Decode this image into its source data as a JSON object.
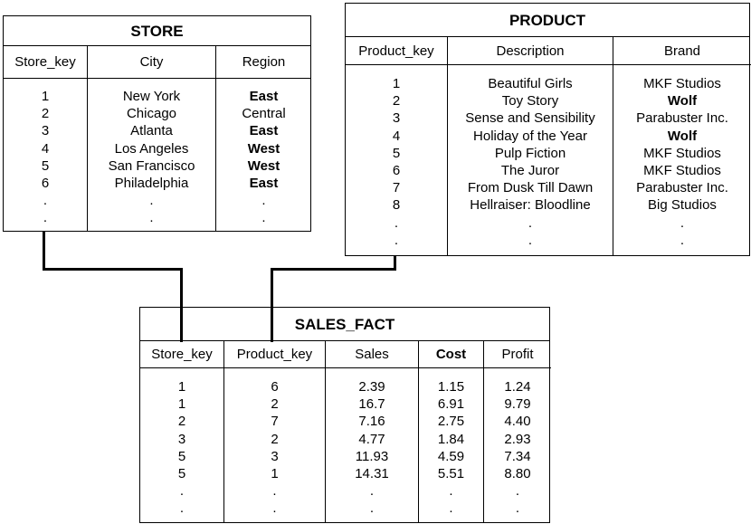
{
  "tables": {
    "store": {
      "title": "STORE",
      "columns": [
        {
          "header": "Store_key",
          "bold_header": false,
          "cells": [
            {
              "t": "1"
            },
            {
              "t": "2"
            },
            {
              "t": "3"
            },
            {
              "t": "4"
            },
            {
              "t": "5"
            },
            {
              "t": "6"
            },
            {
              "t": "."
            },
            {
              "t": "."
            }
          ]
        },
        {
          "header": "City",
          "bold_header": false,
          "cells": [
            {
              "t": "New York"
            },
            {
              "t": "Chicago"
            },
            {
              "t": "Atlanta"
            },
            {
              "t": "Los Angeles"
            },
            {
              "t": "San Francisco"
            },
            {
              "t": "Philadelphia"
            },
            {
              "t": "."
            },
            {
              "t": "."
            }
          ]
        },
        {
          "header": "Region",
          "bold_header": false,
          "cells": [
            {
              "t": "East",
              "b": true
            },
            {
              "t": "Central"
            },
            {
              "t": "East",
              "b": true
            },
            {
              "t": "West",
              "b": true
            },
            {
              "t": "West",
              "b": true
            },
            {
              "t": "East",
              "b": true
            },
            {
              "t": "."
            },
            {
              "t": "."
            }
          ]
        }
      ]
    },
    "product": {
      "title": "PRODUCT",
      "columns": [
        {
          "header": "Product_key",
          "bold_header": false,
          "cells": [
            {
              "t": "1"
            },
            {
              "t": "2"
            },
            {
              "t": "3"
            },
            {
              "t": "4"
            },
            {
              "t": "5"
            },
            {
              "t": "6"
            },
            {
              "t": "7"
            },
            {
              "t": "8"
            },
            {
              "t": "."
            },
            {
              "t": "."
            }
          ]
        },
        {
          "header": "Description",
          "bold_header": false,
          "cells": [
            {
              "t": "Beautiful Girls"
            },
            {
              "t": "Toy Story"
            },
            {
              "t": "Sense and Sensibility"
            },
            {
              "t": "Holiday of the Year"
            },
            {
              "t": "Pulp Fiction"
            },
            {
              "t": "The Juror"
            },
            {
              "t": "From Dusk Till Dawn"
            },
            {
              "t": "Hellraiser: Bloodline"
            },
            {
              "t": "."
            },
            {
              "t": "."
            }
          ]
        },
        {
          "header": "Brand",
          "bold_header": false,
          "cells": [
            {
              "t": "MKF Studios"
            },
            {
              "t": "Wolf",
              "b": true
            },
            {
              "t": "Parabuster Inc."
            },
            {
              "t": "Wolf",
              "b": true
            },
            {
              "t": "MKF Studios"
            },
            {
              "t": "MKF Studios"
            },
            {
              "t": "Parabuster Inc."
            },
            {
              "t": "Big Studios"
            },
            {
              "t": "."
            },
            {
              "t": "."
            }
          ]
        }
      ]
    },
    "sales_fact": {
      "title": "SALES_FACT",
      "columns": [
        {
          "header": "Store_key",
          "bold_header": false,
          "cells": [
            {
              "t": "1"
            },
            {
              "t": "1"
            },
            {
              "t": "2"
            },
            {
              "t": "3"
            },
            {
              "t": "5"
            },
            {
              "t": "5"
            },
            {
              "t": "."
            },
            {
              "t": "."
            }
          ]
        },
        {
          "header": "Product_key",
          "bold_header": false,
          "cells": [
            {
              "t": "6"
            },
            {
              "t": "2"
            },
            {
              "t": "7"
            },
            {
              "t": "2"
            },
            {
              "t": "3"
            },
            {
              "t": "1"
            },
            {
              "t": "."
            },
            {
              "t": "."
            }
          ]
        },
        {
          "header": "Sales",
          "bold_header": false,
          "cells": [
            {
              "t": "2.39"
            },
            {
              "t": "16.7"
            },
            {
              "t": "7.16"
            },
            {
              "t": "4.77"
            },
            {
              "t": "11.93"
            },
            {
              "t": "14.31"
            },
            {
              "t": "."
            },
            {
              "t": "."
            }
          ]
        },
        {
          "header": "Cost",
          "bold_header": true,
          "cells": [
            {
              "t": "1.15"
            },
            {
              "t": "6.91"
            },
            {
              "t": "2.75"
            },
            {
              "t": "1.84"
            },
            {
              "t": "4.59"
            },
            {
              "t": "5.51"
            },
            {
              "t": "."
            },
            {
              "t": "."
            }
          ]
        },
        {
          "header": "Profit",
          "bold_header": false,
          "cells": [
            {
              "t": "1.24"
            },
            {
              "t": "9.79"
            },
            {
              "t": "4.40"
            },
            {
              "t": "2.93"
            },
            {
              "t": "7.34"
            },
            {
              "t": "8.80"
            },
            {
              "t": "."
            },
            {
              "t": "."
            }
          ]
        }
      ]
    }
  }
}
